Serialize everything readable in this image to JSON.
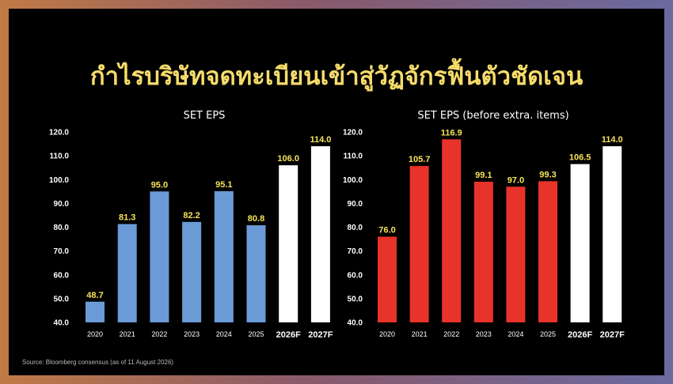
{
  "slide_title": "กำไรบริษัทจดทะเบียนเข้าสู่วัฏจักรฟื้นตัวชัดเจน",
  "source": "Source: Bloomberg consensus (as of 11 August 2026)",
  "colors": {
    "title": "#f6dc6a",
    "actual_left": "#6b9bd6",
    "actual_right": "#e8332a",
    "forecast": "#ffffff",
    "data_label": "#f6e35a",
    "background": "#000000"
  },
  "chart_data": [
    {
      "type": "bar",
      "title": "SET EPS",
      "categories": [
        "2020",
        "2021",
        "2022",
        "2023",
        "2024",
        "2025",
        "2026F",
        "2027F"
      ],
      "values": [
        48.7,
        81.3,
        95.0,
        82.2,
        95.1,
        80.8,
        106.0,
        114.0
      ],
      "value_labels": [
        "48.7",
        "81.3",
        "95.0",
        "82.2",
        "95.1",
        "80.8",
        "106.0",
        "114.0"
      ],
      "bar_colors": [
        "#6b9bd6",
        "#6b9bd6",
        "#6b9bd6",
        "#6b9bd6",
        "#6b9bd6",
        "#6b9bd6",
        "#ffffff",
        "#ffffff"
      ],
      "yticks": [
        "40.0",
        "50.0",
        "60.0",
        "70.0",
        "80.0",
        "90.0",
        "100.0",
        "110.0",
        "120.0"
      ],
      "ylim": [
        40,
        120
      ],
      "grid": false
    },
    {
      "type": "bar",
      "title": "SET EPS (before extra. items)",
      "categories": [
        "2020",
        "2021",
        "2022",
        "2023",
        "2024",
        "2025",
        "2026F",
        "2027F"
      ],
      "values": [
        76.0,
        105.7,
        116.9,
        99.1,
        97.0,
        99.3,
        106.5,
        114.0
      ],
      "value_labels": [
        "76.0",
        "105.7",
        "116.9",
        "99.1",
        "97.0",
        "99.3",
        "106.5",
        "114.0"
      ],
      "bar_colors": [
        "#e8332a",
        "#e8332a",
        "#e8332a",
        "#e8332a",
        "#e8332a",
        "#e8332a",
        "#ffffff",
        "#ffffff"
      ],
      "yticks": [
        "40.0",
        "50.0",
        "60.0",
        "70.0",
        "80.0",
        "90.0",
        "100.0",
        "110.0",
        "120.0"
      ],
      "ylim": [
        40,
        120
      ],
      "grid": false
    }
  ]
}
